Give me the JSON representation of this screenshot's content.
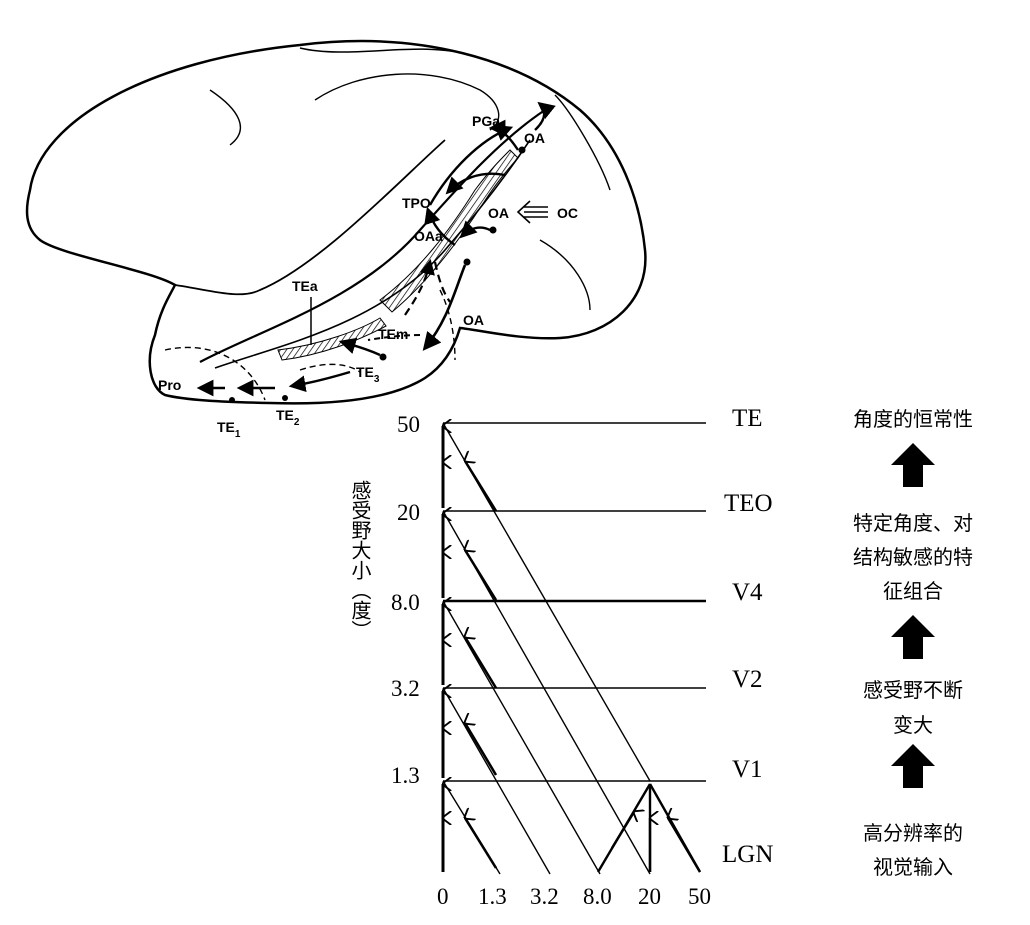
{
  "brain": {
    "labels": {
      "pga": "PGa",
      "oa_top": "OA",
      "tpo": "TPO",
      "oa_mid": "OA",
      "oc": "OC",
      "oaa": "OAa",
      "tea": "TEa",
      "tem": "TEm",
      "oa_low": "OA",
      "te3": "TE",
      "te3_sub": "3",
      "pro": "Pro",
      "te2": "TE",
      "te2_sub": "2",
      "te1": "TE",
      "te1_sub": "1"
    }
  },
  "diagram": {
    "y_axis_title": "感受野大小（度）",
    "y_ticks": [
      "50",
      "20",
      "8.0",
      "3.2",
      "1.3"
    ],
    "x_ticks": [
      "0",
      "1.3",
      "3.2",
      "8.0",
      "20",
      "50"
    ],
    "areas": [
      "TE",
      "TEO",
      "V4",
      "V2",
      "V1",
      "LGN"
    ],
    "annotations": {
      "te": "角度的恒常性",
      "teo_line1": "特定角度、对",
      "teo_line2": "结构敏感的特",
      "teo_line3": "征组合",
      "v2_line1": "感受野不断",
      "v2_line2": "变大",
      "lgn_line1": "高分辨率的",
      "lgn_line2": "视觉输入"
    },
    "arrow_icon": "up-arrow-icon",
    "ink_color": "#000000"
  }
}
